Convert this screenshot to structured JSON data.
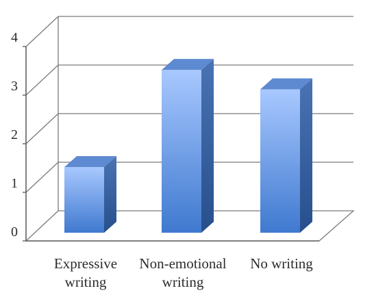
{
  "chart_data": {
    "type": "bar",
    "categories": [
      "Expressive\nwriting",
      "Non-emotional\nwriting",
      "No writing"
    ],
    "values": [
      1.35,
      3.35,
      2.95
    ],
    "ylim": [
      0,
      4
    ],
    "yticks": [
      0,
      1,
      2,
      3,
      4
    ],
    "title": "",
    "xlabel": "",
    "ylabel": "",
    "grid": true,
    "style": "3d-column",
    "colors": {
      "bar_top": "#a8c8ff",
      "bar_bottom": "#3f79cf",
      "bar_side": "#2f5d9e",
      "bar_cap": "#5d8ad0",
      "grid": "#7a7a7a"
    }
  }
}
